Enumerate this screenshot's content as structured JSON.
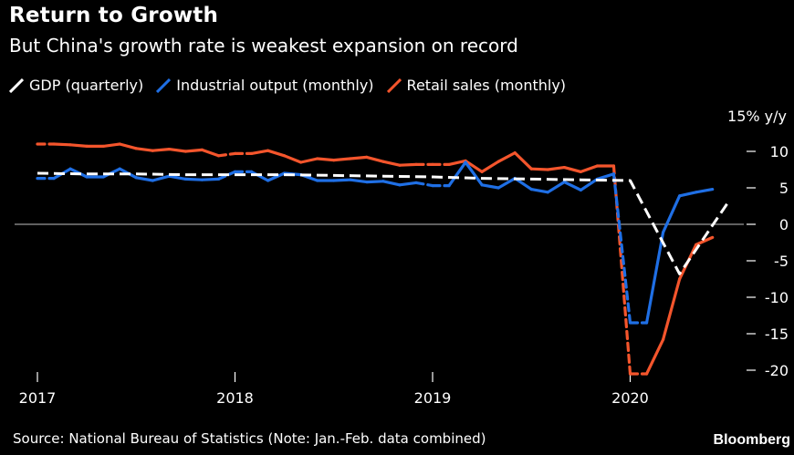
{
  "header": {
    "title": "Return to Growth",
    "subtitle": "But China's growth rate is weakest expansion on record"
  },
  "footer": {
    "source": "Source: National Bureau of Statistics (Note: Jan.-Feb. data combined)",
    "brand": "Bloomberg"
  },
  "colors": {
    "background": "#000000",
    "gdp": "#ffffff",
    "industrial": "#1f6fe5",
    "retail": "#f4552c",
    "zero_line": "#9a9a9a"
  },
  "chart_data": {
    "type": "line",
    "unit_label": "15% y/y",
    "ylim": [
      -21,
      15
    ],
    "yticks": [
      10,
      5,
      0,
      -5,
      -10,
      -15,
      -20
    ],
    "ytick_labels": [
      "10",
      "5",
      "0",
      "-5",
      "-10",
      "-15",
      "-20"
    ],
    "xlim": [
      "2017-01",
      "2020-08"
    ],
    "xticks": [
      "2017",
      "2018",
      "2019",
      "2020"
    ],
    "grid": false,
    "legend_position": "top-left",
    "series": [
      {
        "name": "GDP (quarterly)",
        "key": "gdp",
        "style": "dashed",
        "points": [
          [
            "2017-01",
            7.0
          ],
          [
            "2017-04",
            6.9
          ],
          [
            "2017-07",
            6.9
          ],
          [
            "2017-10",
            6.8
          ],
          [
            "2018-01",
            6.8
          ],
          [
            "2018-04",
            6.8
          ],
          [
            "2018-07",
            6.7
          ],
          [
            "2018-10",
            6.6
          ],
          [
            "2019-01",
            6.5
          ],
          [
            "2019-04",
            6.3
          ],
          [
            "2019-07",
            6.2
          ],
          [
            "2019-10",
            6.1
          ],
          [
            "2020-01",
            6.0
          ],
          [
            "2020-04",
            -6.8
          ],
          [
            "2020-07",
            3.2
          ]
        ]
      },
      {
        "name": "Industrial output (monthly)",
        "key": "industrial",
        "style": "solid",
        "points": [
          [
            "2017-01",
            6.3
          ],
          [
            "2017-02",
            6.3
          ],
          [
            "2017-03",
            7.6
          ],
          [
            "2017-04",
            6.5
          ],
          [
            "2017-05",
            6.5
          ],
          [
            "2017-06",
            7.6
          ],
          [
            "2017-07",
            6.4
          ],
          [
            "2017-08",
            6.0
          ],
          [
            "2017-09",
            6.6
          ],
          [
            "2017-10",
            6.2
          ],
          [
            "2017-11",
            6.1
          ],
          [
            "2017-12",
            6.2
          ],
          [
            "2018-01",
            7.2
          ],
          [
            "2018-02",
            7.2
          ],
          [
            "2018-03",
            6.0
          ],
          [
            "2018-04",
            7.0
          ],
          [
            "2018-05",
            6.8
          ],
          [
            "2018-06",
            6.0
          ],
          [
            "2018-07",
            6.0
          ],
          [
            "2018-08",
            6.1
          ],
          [
            "2018-09",
            5.8
          ],
          [
            "2018-10",
            5.9
          ],
          [
            "2018-11",
            5.4
          ],
          [
            "2018-12",
            5.7
          ],
          [
            "2019-01",
            5.3
          ],
          [
            "2019-02",
            5.3
          ],
          [
            "2019-03",
            8.5
          ],
          [
            "2019-04",
            5.4
          ],
          [
            "2019-05",
            5.0
          ],
          [
            "2019-06",
            6.3
          ],
          [
            "2019-07",
            4.8
          ],
          [
            "2019-08",
            4.4
          ],
          [
            "2019-09",
            5.8
          ],
          [
            "2019-10",
            4.7
          ],
          [
            "2019-11",
            6.2
          ],
          [
            "2019-12",
            6.9
          ],
          [
            "2020-01",
            -13.5
          ],
          [
            "2020-02",
            -13.5
          ],
          [
            "2020-03",
            -1.1
          ],
          [
            "2020-04",
            3.9
          ],
          [
            "2020-05",
            4.4
          ],
          [
            "2020-06",
            4.8
          ]
        ]
      },
      {
        "name": "Retail sales (monthly)",
        "key": "retail",
        "style": "solid",
        "points": [
          [
            "2017-01",
            11.0
          ],
          [
            "2017-02",
            11.0
          ],
          [
            "2017-03",
            10.9
          ],
          [
            "2017-04",
            10.7
          ],
          [
            "2017-05",
            10.7
          ],
          [
            "2017-06",
            11.0
          ],
          [
            "2017-07",
            10.4
          ],
          [
            "2017-08",
            10.1
          ],
          [
            "2017-09",
            10.3
          ],
          [
            "2017-10",
            10.0
          ],
          [
            "2017-11",
            10.2
          ],
          [
            "2017-12",
            9.4
          ],
          [
            "2018-01",
            9.7
          ],
          [
            "2018-02",
            9.7
          ],
          [
            "2018-03",
            10.1
          ],
          [
            "2018-04",
            9.4
          ],
          [
            "2018-05",
            8.5
          ],
          [
            "2018-06",
            9.0
          ],
          [
            "2018-07",
            8.8
          ],
          [
            "2018-08",
            9.0
          ],
          [
            "2018-09",
            9.2
          ],
          [
            "2018-10",
            8.6
          ],
          [
            "2018-11",
            8.1
          ],
          [
            "2018-12",
            8.2
          ],
          [
            "2019-01",
            8.2
          ],
          [
            "2019-02",
            8.2
          ],
          [
            "2019-03",
            8.7
          ],
          [
            "2019-04",
            7.2
          ],
          [
            "2019-05",
            8.6
          ],
          [
            "2019-06",
            9.8
          ],
          [
            "2019-07",
            7.6
          ],
          [
            "2019-08",
            7.5
          ],
          [
            "2019-09",
            7.8
          ],
          [
            "2019-10",
            7.2
          ],
          [
            "2019-11",
            8.0
          ],
          [
            "2019-12",
            8.0
          ],
          [
            "2020-01",
            -20.5
          ],
          [
            "2020-02",
            -20.5
          ],
          [
            "2020-03",
            -15.8
          ],
          [
            "2020-04",
            -7.5
          ],
          [
            "2020-05",
            -2.8
          ],
          [
            "2020-06",
            -1.8
          ]
        ]
      }
    ]
  }
}
